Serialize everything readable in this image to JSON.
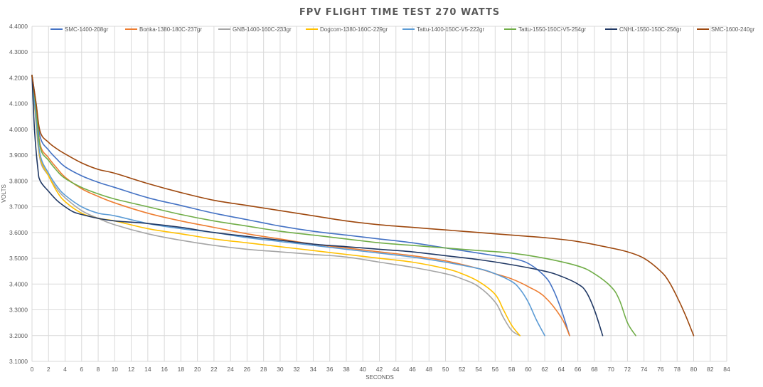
{
  "chart_data": {
    "type": "line",
    "title": "FPV FLIGHT TIME TEST 270 WATTS",
    "xlabel": "SECONDS",
    "ylabel": "VOLTS",
    "xlim": [
      0,
      84
    ],
    "ylim": [
      3.1,
      4.4
    ],
    "x_ticks": [
      0,
      2,
      4,
      6,
      8,
      10,
      12,
      14,
      16,
      18,
      20,
      22,
      24,
      26,
      28,
      30,
      32,
      34,
      36,
      38,
      40,
      42,
      44,
      46,
      48,
      50,
      52,
      54,
      56,
      58,
      60,
      62,
      64,
      66,
      68,
      70,
      72,
      74,
      76,
      78,
      80,
      82,
      84
    ],
    "y_ticks": [
      "3.1000",
      "3.2000",
      "3.3000",
      "3.4000",
      "3.5000",
      "3.6000",
      "3.7000",
      "3.8000",
      "3.9000",
      "4.0000",
      "4.1000",
      "4.2000",
      "4.3000",
      "4.4000"
    ],
    "grid": true,
    "legend_position": "top",
    "series": [
      {
        "name": "SMC-1400-208gr",
        "color": "#4472c4",
        "points": [
          [
            0,
            4.21
          ],
          [
            0.5,
            4.1
          ],
          [
            1,
            3.97
          ],
          [
            2,
            3.92
          ],
          [
            3,
            3.885
          ],
          [
            4,
            3.855
          ],
          [
            6,
            3.82
          ],
          [
            8,
            3.795
          ],
          [
            10,
            3.775
          ],
          [
            14,
            3.735
          ],
          [
            18,
            3.705
          ],
          [
            22,
            3.675
          ],
          [
            26,
            3.65
          ],
          [
            30,
            3.625
          ],
          [
            34,
            3.605
          ],
          [
            38,
            3.59
          ],
          [
            42,
            3.575
          ],
          [
            46,
            3.56
          ],
          [
            50,
            3.54
          ],
          [
            54,
            3.52
          ],
          [
            56,
            3.51
          ],
          [
            58,
            3.5
          ],
          [
            60,
            3.48
          ],
          [
            62,
            3.43
          ],
          [
            63,
            3.38
          ],
          [
            64,
            3.3
          ],
          [
            65,
            3.2
          ]
        ]
      },
      {
        "name": "Bonka-1380-180C-237gr",
        "color": "#ed7d31",
        "points": [
          [
            0,
            4.21
          ],
          [
            0.5,
            4.08
          ],
          [
            1,
            3.94
          ],
          [
            2,
            3.89
          ],
          [
            3,
            3.85
          ],
          [
            4,
            3.815
          ],
          [
            6,
            3.77
          ],
          [
            8,
            3.74
          ],
          [
            10,
            3.715
          ],
          [
            14,
            3.675
          ],
          [
            18,
            3.645
          ],
          [
            22,
            3.62
          ],
          [
            26,
            3.595
          ],
          [
            30,
            3.575
          ],
          [
            34,
            3.555
          ],
          [
            38,
            3.54
          ],
          [
            42,
            3.525
          ],
          [
            46,
            3.51
          ],
          [
            50,
            3.49
          ],
          [
            54,
            3.46
          ],
          [
            56,
            3.44
          ],
          [
            58,
            3.42
          ],
          [
            60,
            3.39
          ],
          [
            62,
            3.35
          ],
          [
            64,
            3.27
          ],
          [
            65,
            3.2
          ]
        ]
      },
      {
        "name": "GNB-1400-160C-233gr",
        "color": "#a5a5a5",
        "points": [
          [
            0,
            4.21
          ],
          [
            0.5,
            4.02
          ],
          [
            1,
            3.88
          ],
          [
            2,
            3.82
          ],
          [
            3,
            3.77
          ],
          [
            4,
            3.735
          ],
          [
            6,
            3.685
          ],
          [
            8,
            3.655
          ],
          [
            10,
            3.63
          ],
          [
            14,
            3.595
          ],
          [
            18,
            3.57
          ],
          [
            22,
            3.55
          ],
          [
            26,
            3.535
          ],
          [
            30,
            3.525
          ],
          [
            34,
            3.515
          ],
          [
            38,
            3.505
          ],
          [
            42,
            3.485
          ],
          [
            46,
            3.465
          ],
          [
            50,
            3.44
          ],
          [
            52,
            3.42
          ],
          [
            54,
            3.39
          ],
          [
            56,
            3.33
          ],
          [
            57,
            3.27
          ],
          [
            58,
            3.22
          ],
          [
            59,
            3.2
          ]
        ]
      },
      {
        "name": "Dogcom-1380-160C-229gr",
        "color": "#ffc000",
        "points": [
          [
            0,
            4.21
          ],
          [
            0.5,
            4.03
          ],
          [
            1,
            3.89
          ],
          [
            2,
            3.82
          ],
          [
            3,
            3.76
          ],
          [
            4,
            3.72
          ],
          [
            6,
            3.675
          ],
          [
            8,
            3.655
          ],
          [
            10,
            3.645
          ],
          [
            14,
            3.615
          ],
          [
            18,
            3.595
          ],
          [
            22,
            3.575
          ],
          [
            26,
            3.56
          ],
          [
            30,
            3.545
          ],
          [
            34,
            3.53
          ],
          [
            38,
            3.515
          ],
          [
            42,
            3.5
          ],
          [
            46,
            3.485
          ],
          [
            50,
            3.46
          ],
          [
            52,
            3.44
          ],
          [
            54,
            3.41
          ],
          [
            56,
            3.36
          ],
          [
            57,
            3.3
          ],
          [
            58,
            3.24
          ],
          [
            59,
            3.2
          ]
        ]
      },
      {
        "name": "Tattu-1400-150C-V5-222gr",
        "color": "#5b9bd5",
        "points": [
          [
            0,
            4.21
          ],
          [
            0.5,
            4.04
          ],
          [
            1,
            3.9
          ],
          [
            2,
            3.83
          ],
          [
            3,
            3.78
          ],
          [
            4,
            3.745
          ],
          [
            6,
            3.7
          ],
          [
            8,
            3.675
          ],
          [
            10,
            3.665
          ],
          [
            14,
            3.635
          ],
          [
            18,
            3.615
          ],
          [
            22,
            3.6
          ],
          [
            26,
            3.58
          ],
          [
            30,
            3.565
          ],
          [
            34,
            3.55
          ],
          [
            38,
            3.535
          ],
          [
            42,
            3.52
          ],
          [
            46,
            3.505
          ],
          [
            50,
            3.485
          ],
          [
            54,
            3.46
          ],
          [
            56,
            3.44
          ],
          [
            58,
            3.41
          ],
          [
            59,
            3.38
          ],
          [
            60,
            3.33
          ],
          [
            61,
            3.26
          ],
          [
            62,
            3.2
          ]
        ]
      },
      {
        "name": "Tattu-1550-150C-V5-254gr",
        "color": "#70ad47",
        "points": [
          [
            0,
            4.21
          ],
          [
            0.5,
            4.08
          ],
          [
            1,
            3.93
          ],
          [
            2,
            3.88
          ],
          [
            3,
            3.84
          ],
          [
            4,
            3.81
          ],
          [
            6,
            3.775
          ],
          [
            8,
            3.75
          ],
          [
            10,
            3.73
          ],
          [
            14,
            3.7
          ],
          [
            18,
            3.67
          ],
          [
            22,
            3.645
          ],
          [
            26,
            3.625
          ],
          [
            30,
            3.605
          ],
          [
            34,
            3.59
          ],
          [
            38,
            3.575
          ],
          [
            42,
            3.56
          ],
          [
            46,
            3.55
          ],
          [
            50,
            3.54
          ],
          [
            54,
            3.53
          ],
          [
            58,
            3.52
          ],
          [
            62,
            3.5
          ],
          [
            66,
            3.47
          ],
          [
            68,
            3.44
          ],
          [
            70,
            3.39
          ],
          [
            71,
            3.34
          ],
          [
            72,
            3.25
          ],
          [
            73,
            3.2
          ]
        ]
      },
      {
        "name": "CNHL-1550-150C-256gr",
        "color": "#203864",
        "points": [
          [
            0,
            4.21
          ],
          [
            0.3,
            4.0
          ],
          [
            0.7,
            3.85
          ],
          [
            1,
            3.8
          ],
          [
            2,
            3.76
          ],
          [
            3,
            3.725
          ],
          [
            4,
            3.7
          ],
          [
            5,
            3.68
          ],
          [
            6,
            3.67
          ],
          [
            8,
            3.655
          ],
          [
            10,
            3.645
          ],
          [
            14,
            3.635
          ],
          [
            18,
            3.62
          ],
          [
            22,
            3.6
          ],
          [
            26,
            3.585
          ],
          [
            30,
            3.57
          ],
          [
            34,
            3.555
          ],
          [
            38,
            3.545
          ],
          [
            42,
            3.535
          ],
          [
            46,
            3.525
          ],
          [
            50,
            3.51
          ],
          [
            54,
            3.495
          ],
          [
            58,
            3.475
          ],
          [
            62,
            3.45
          ],
          [
            64,
            3.43
          ],
          [
            66,
            3.4
          ],
          [
            67,
            3.37
          ],
          [
            68,
            3.3
          ],
          [
            69,
            3.2
          ]
        ]
      },
      {
        "name": "SMC-1600-240gr",
        "color": "#9e480e",
        "points": [
          [
            0,
            4.21
          ],
          [
            0.5,
            4.1
          ],
          [
            1,
            3.99
          ],
          [
            2,
            3.95
          ],
          [
            3,
            3.925
          ],
          [
            4,
            3.905
          ],
          [
            6,
            3.87
          ],
          [
            8,
            3.845
          ],
          [
            10,
            3.83
          ],
          [
            14,
            3.79
          ],
          [
            18,
            3.755
          ],
          [
            22,
            3.725
          ],
          [
            26,
            3.705
          ],
          [
            30,
            3.685
          ],
          [
            34,
            3.665
          ],
          [
            38,
            3.645
          ],
          [
            42,
            3.63
          ],
          [
            46,
            3.62
          ],
          [
            50,
            3.61
          ],
          [
            54,
            3.6
          ],
          [
            58,
            3.59
          ],
          [
            62,
            3.58
          ],
          [
            66,
            3.565
          ],
          [
            70,
            3.54
          ],
          [
            72,
            3.525
          ],
          [
            74,
            3.5
          ],
          [
            76,
            3.45
          ],
          [
            77,
            3.41
          ],
          [
            78,
            3.35
          ],
          [
            79,
            3.28
          ],
          [
            80,
            3.2
          ]
        ]
      }
    ]
  }
}
